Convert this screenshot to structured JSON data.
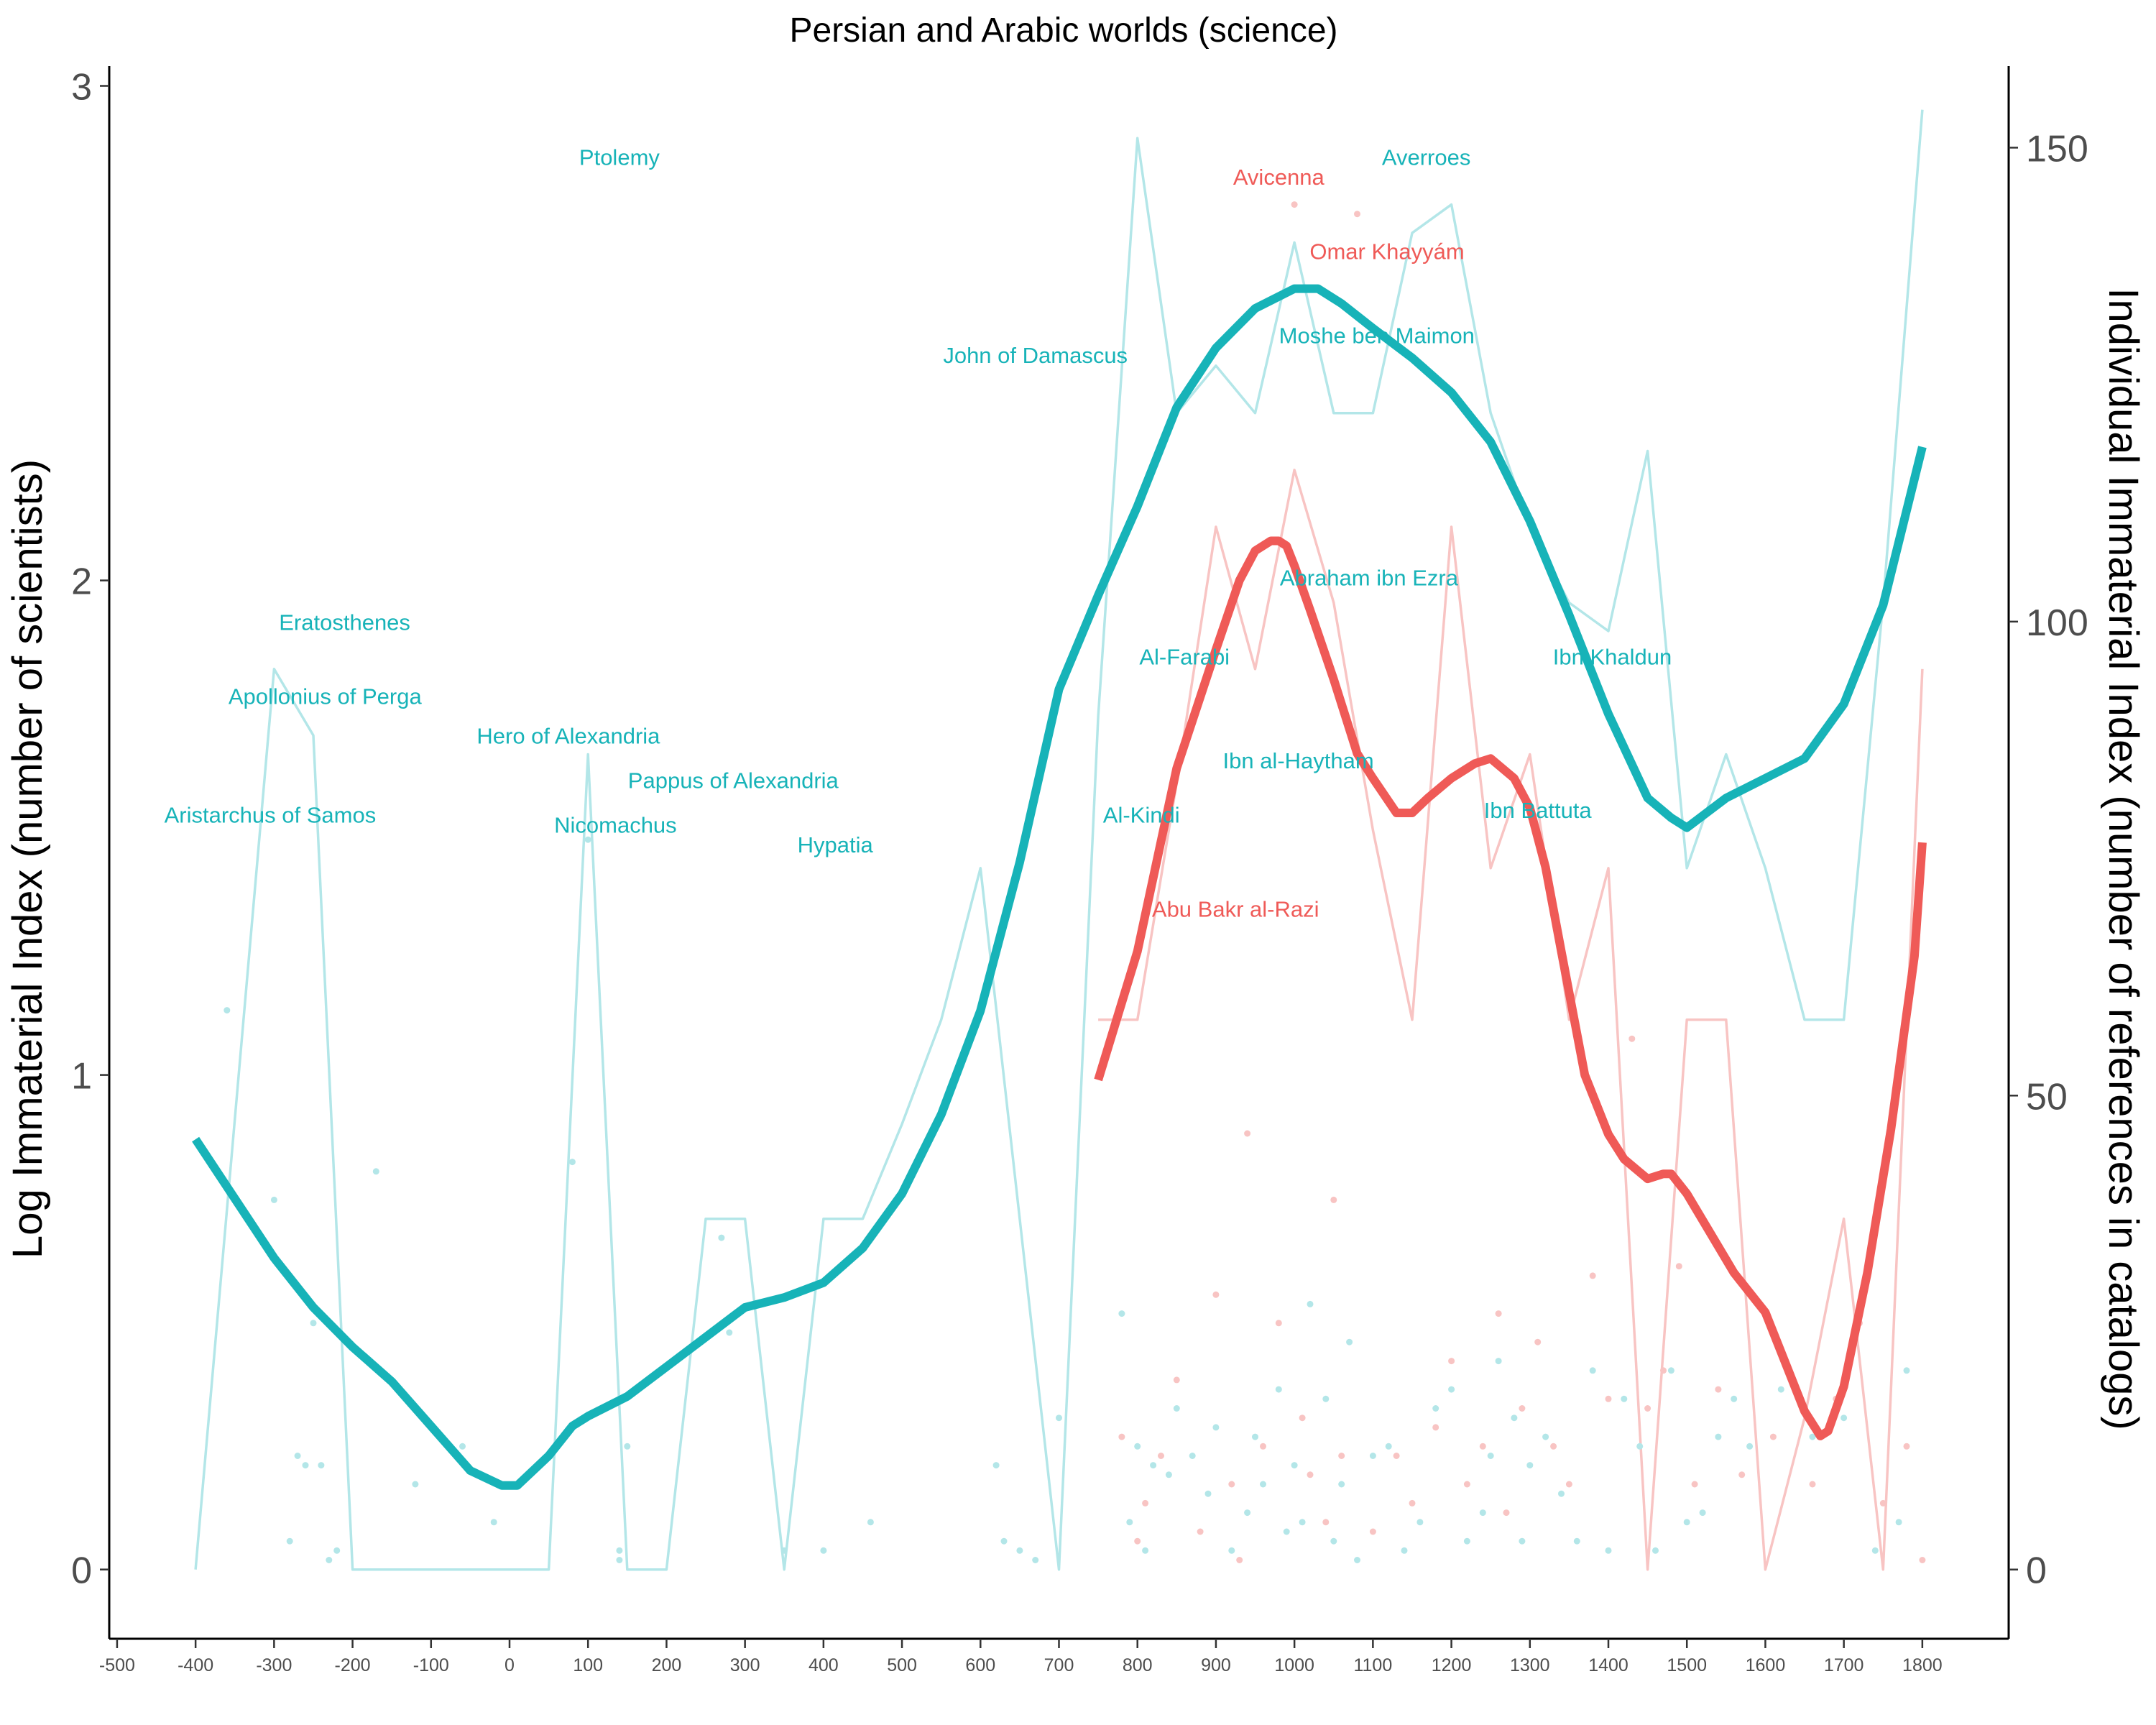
{
  "chart_data": {
    "type": "line",
    "title": "Persian and Arabic worlds (science)",
    "ylabel_left": "Log Immaterial Index (number of scientists)",
    "ylabel_right": "Individual Immaterial Index (number of references in catalogs)",
    "xlim": [
      -510,
      1910
    ],
    "ylim_left": [
      -0.14,
      3.04
    ],
    "ylim_right": [
      -7.3,
      158.6
    ],
    "x_ticks": [
      -500,
      -400,
      -300,
      -200,
      -100,
      0,
      100,
      200,
      300,
      400,
      500,
      600,
      700,
      800,
      900,
      1000,
      1100,
      1200,
      1300,
      1400,
      1500,
      1600,
      1700,
      1800
    ],
    "y_ticks_left": [
      0,
      1,
      2,
      3
    ],
    "y_ticks_right": [
      0,
      50,
      100,
      150
    ],
    "colors": {
      "teal": "#17b3b8",
      "red": "#ef5a57",
      "teal_light": "#b3e6e8",
      "red_light": "#f8c4c3"
    },
    "series": [
      {
        "role": "smooth",
        "color": "#17b3b8",
        "x": [
          -400,
          -350,
          -300,
          -250,
          -200,
          -150,
          -100,
          -50,
          -10,
          10,
          50,
          80,
          100,
          150,
          200,
          250,
          300,
          350,
          400,
          450,
          500,
          550,
          600,
          650,
          700,
          750,
          800,
          850,
          900,
          950,
          1000,
          1030,
          1060,
          1100,
          1150,
          1200,
          1250,
          1300,
          1350,
          1400,
          1450,
          1480,
          1500,
          1550,
          1600,
          1650,
          1700,
          1750,
          1800
        ],
        "y": [
          0.87,
          0.75,
          0.63,
          0.53,
          0.45,
          0.38,
          0.29,
          0.2,
          0.17,
          0.17,
          0.23,
          0.29,
          0.31,
          0.35,
          0.41,
          0.47,
          0.53,
          0.55,
          0.58,
          0.65,
          0.76,
          0.92,
          1.13,
          1.43,
          1.78,
          1.97,
          2.15,
          2.35,
          2.47,
          2.55,
          2.59,
          2.59,
          2.56,
          2.51,
          2.45,
          2.38,
          2.28,
          2.12,
          1.93,
          1.73,
          1.56,
          1.52,
          1.5,
          1.56,
          1.6,
          1.64,
          1.75,
          1.95,
          2.27
        ]
      },
      {
        "role": "smooth",
        "color": "#ef5a57",
        "x": [
          750,
          800,
          850,
          900,
          930,
          950,
          970,
          980,
          990,
          1000,
          1020,
          1050,
          1080,
          1100,
          1130,
          1150,
          1170,
          1200,
          1230,
          1250,
          1280,
          1300,
          1320,
          1340,
          1370,
          1400,
          1420,
          1450,
          1470,
          1480,
          1500,
          1530,
          1560,
          1600,
          1630,
          1650,
          1670,
          1680,
          1700,
          1730,
          1760,
          1790,
          1800
        ],
        "y": [
          0.99,
          1.25,
          1.62,
          1.86,
          2.0,
          2.06,
          2.08,
          2.08,
          2.07,
          2.03,
          1.94,
          1.8,
          1.65,
          1.6,
          1.53,
          1.53,
          1.56,
          1.6,
          1.63,
          1.64,
          1.6,
          1.54,
          1.42,
          1.25,
          1.0,
          0.88,
          0.83,
          0.79,
          0.8,
          0.8,
          0.76,
          0.68,
          0.6,
          0.52,
          0.4,
          0.32,
          0.27,
          0.28,
          0.37,
          0.6,
          0.89,
          1.24,
          1.47
        ]
      },
      {
        "role": "raw-line",
        "axis": "right",
        "color": "#b3e6e8",
        "x": [
          -400,
          -300,
          -250,
          -200,
          -150,
          -100,
          -50,
          0,
          50,
          100,
          150,
          200,
          250,
          300,
          350,
          400,
          450,
          500,
          550,
          600,
          650,
          700,
          750,
          800,
          850,
          900,
          950,
          1000,
          1050,
          1100,
          1150,
          1200,
          1250,
          1300,
          1350,
          1400,
          1450,
          1500,
          1550,
          1600,
          1650,
          1700,
          1750,
          1800
        ],
        "y": [
          0,
          95,
          88,
          0,
          0,
          0,
          0,
          0,
          0,
          86,
          0,
          0,
          37,
          37,
          0,
          37,
          37,
          47,
          58,
          74,
          37,
          0,
          90,
          151,
          122,
          127,
          122,
          140,
          122,
          122,
          141,
          144,
          122,
          110,
          102,
          99,
          118,
          74,
          86,
          74,
          58,
          58,
          102,
          154
        ]
      },
      {
        "role": "raw-line",
        "axis": "right",
        "color": "#f8c4c3",
        "x": [
          750,
          800,
          850,
          900,
          950,
          1000,
          1050,
          1100,
          1150,
          1200,
          1250,
          1300,
          1350,
          1400,
          1450,
          1500,
          1550,
          1600,
          1650,
          1700,
          1750,
          1800
        ],
        "y": [
          58,
          58,
          83,
          110,
          95,
          116,
          102,
          78,
          58,
          110,
          74,
          86,
          58,
          74,
          0,
          58,
          58,
          0,
          16,
          37,
          0,
          95
        ]
      },
      {
        "role": "points",
        "axis": "right",
        "color": "#b3e6e8",
        "x": [
          -360,
          -300,
          -280,
          -270,
          -260,
          -250,
          -240,
          -230,
          -220,
          -170,
          -120,
          -60,
          -20,
          80,
          100,
          140,
          140,
          150,
          270,
          280,
          350,
          400,
          460,
          620,
          630,
          650,
          670,
          700,
          780,
          790,
          800,
          810,
          820,
          840,
          850,
          870,
          890,
          900,
          920,
          940,
          950,
          960,
          980,
          990,
          1000,
          1010,
          1020,
          1040,
          1050,
          1060,
          1070,
          1080,
          1100,
          1120,
          1140,
          1160,
          1180,
          1200,
          1220,
          1240,
          1250,
          1260,
          1280,
          1290,
          1300,
          1320,
          1340,
          1360,
          1380,
          1400,
          1420,
          1440,
          1460,
          1480,
          1500,
          1520,
          1540,
          1560,
          1580,
          1620,
          1660,
          1700,
          1740,
          1770,
          1780
        ],
        "y": [
          59,
          39,
          3,
          12,
          11,
          26,
          11,
          1,
          2,
          42,
          9,
          13,
          5,
          43,
          77,
          2,
          1,
          13,
          35,
          25,
          2,
          2,
          5,
          11,
          3,
          2,
          1,
          16,
          27,
          5,
          13,
          2,
          11,
          10,
          17,
          12,
          8,
          15,
          2,
          6,
          14,
          9,
          19,
          4,
          11,
          5,
          28,
          18,
          3,
          9,
          24,
          1,
          12,
          13,
          2,
          5,
          17,
          19,
          3,
          6,
          12,
          22,
          16,
          3,
          11,
          14,
          8,
          3,
          21,
          2,
          18,
          13,
          2,
          21,
          5,
          6,
          14,
          18,
          13,
          19,
          14,
          16,
          2,
          5,
          21
        ]
      },
      {
        "role": "points",
        "axis": "right",
        "color": "#f8c4c3",
        "x": [
          780,
          800,
          810,
          830,
          850,
          880,
          900,
          920,
          930,
          940,
          960,
          980,
          1000,
          1010,
          1020,
          1040,
          1050,
          1060,
          1080,
          1100,
          1130,
          1150,
          1180,
          1200,
          1220,
          1240,
          1260,
          1270,
          1290,
          1310,
          1330,
          1350,
          1380,
          1400,
          1430,
          1450,
          1470,
          1490,
          1510,
          1540,
          1570,
          1610,
          1660,
          1690,
          1720,
          1750,
          1780,
          1800
        ],
        "y": [
          14,
          3,
          7,
          12,
          20,
          4,
          29,
          9,
          1,
          46,
          13,
          26,
          144,
          16,
          10,
          5,
          39,
          12,
          143,
          4,
          12,
          7,
          15,
          22,
          9,
          13,
          27,
          6,
          17,
          24,
          13,
          9,
          31,
          18,
          56,
          17,
          21,
          32,
          9,
          19,
          10,
          14,
          9,
          18,
          26,
          7,
          13,
          1
        ]
      }
    ],
    "annotations": [
      {
        "text": "Ptolemy",
        "x": 140,
        "y": 2.84,
        "color": "#17b3b8"
      },
      {
        "text": "Averroes",
        "x": 1168,
        "y": 2.84,
        "color": "#17b3b8"
      },
      {
        "text": "Avicenna",
        "x": 980,
        "y": 2.8,
        "color": "#ef5a57"
      },
      {
        "text": "Omar Khayyám",
        "x": 1118,
        "y": 2.65,
        "color": "#ef5a57"
      },
      {
        "text": "Moshe ben Maimon",
        "x": 1105,
        "y": 2.48,
        "color": "#17b3b8"
      },
      {
        "text": "John of Damascus",
        "x": 670,
        "y": 2.44,
        "color": "#17b3b8"
      },
      {
        "text": "Abraham ibn Ezra",
        "x": 1095,
        "y": 1.99,
        "color": "#17b3b8"
      },
      {
        "text": "Eratosthenes",
        "x": -210,
        "y": 1.9,
        "color": "#17b3b8"
      },
      {
        "text": "Al-Farabi",
        "x": 860,
        "y": 1.83,
        "color": "#17b3b8"
      },
      {
        "text": "Ibn Khaldun",
        "x": 1405,
        "y": 1.83,
        "color": "#17b3b8"
      },
      {
        "text": "Apollonius of Perga",
        "x": -235,
        "y": 1.75,
        "color": "#17b3b8"
      },
      {
        "text": "Hero of Alexandria",
        "x": 75,
        "y": 1.67,
        "color": "#17b3b8"
      },
      {
        "text": "Ibn al-Haytham",
        "x": 1005,
        "y": 1.62,
        "color": "#17b3b8"
      },
      {
        "text": "Pappus of Alexandria",
        "x": 285,
        "y": 1.58,
        "color": "#17b3b8"
      },
      {
        "text": "Ibn Battuta",
        "x": 1310,
        "y": 1.52,
        "color": "#17b3b8"
      },
      {
        "text": "Aristarchus of Samos",
        "x": -305,
        "y": 1.51,
        "color": "#17b3b8"
      },
      {
        "text": "Al-Kindi",
        "x": 805,
        "y": 1.51,
        "color": "#17b3b8"
      },
      {
        "text": "Nicomachus",
        "x": 135,
        "y": 1.49,
        "color": "#17b3b8"
      },
      {
        "text": "Hypatia",
        "x": 415,
        "y": 1.45,
        "color": "#17b3b8"
      },
      {
        "text": "Abu Bakr al-Razi",
        "x": 925,
        "y": 1.32,
        "color": "#ef5a57"
      }
    ],
    "grid": false,
    "legend": "none"
  }
}
